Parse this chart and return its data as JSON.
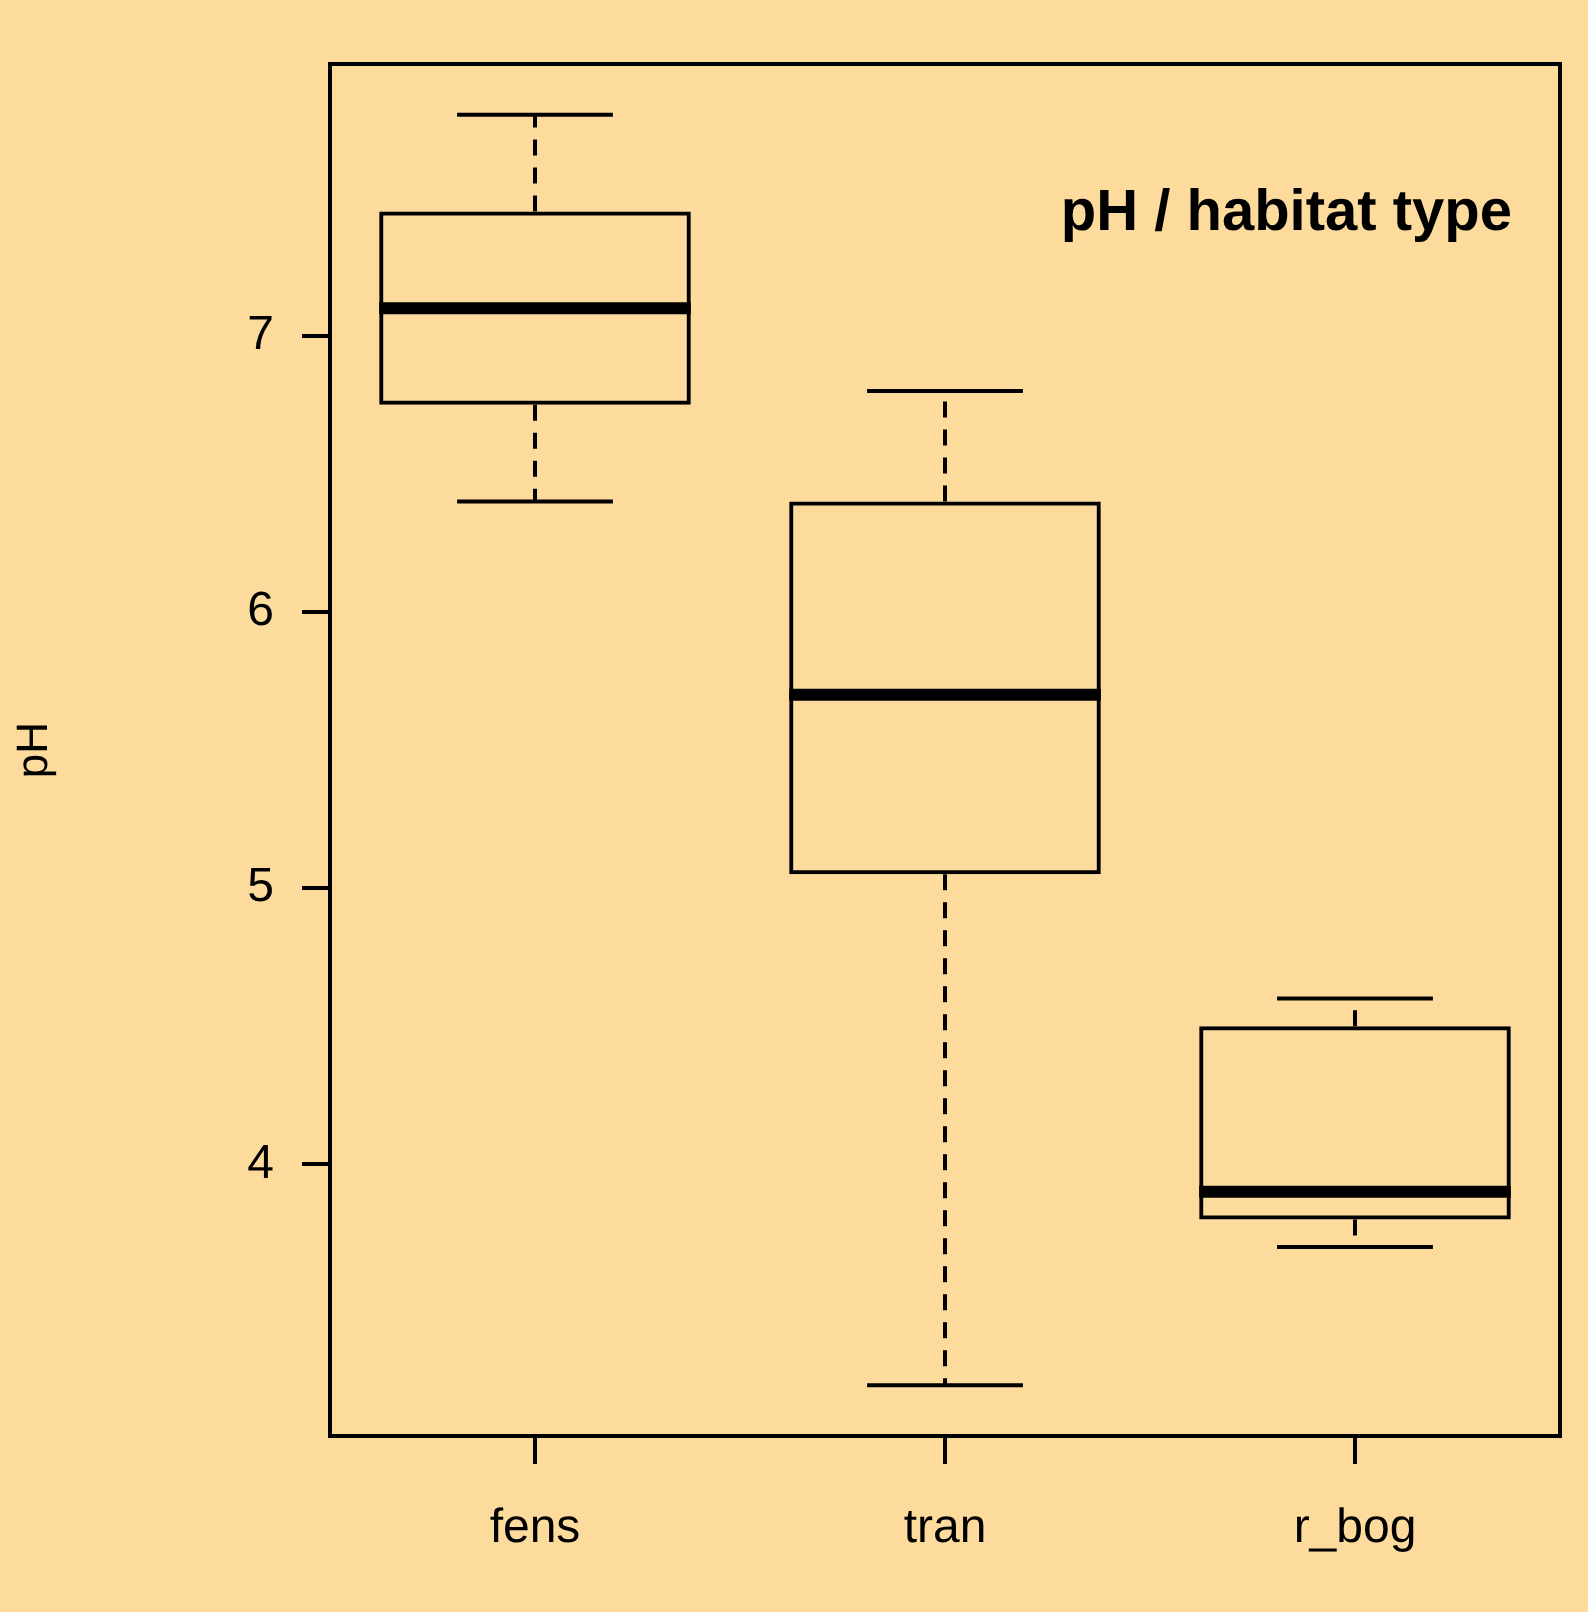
{
  "chart_data": {
    "type": "box",
    "title": "pH / habitat type",
    "ylabel": "pH",
    "categories": [
      "fens",
      "tran",
      "r_bog"
    ],
    "boxes": [
      {
        "low": 6.4,
        "q1": 6.75,
        "median": 7.1,
        "q3": 7.45,
        "high": 7.8
      },
      {
        "low": 3.2,
        "q1": 5.05,
        "median": 5.7,
        "q3": 6.4,
        "high": 6.8
      },
      {
        "low": 3.7,
        "q1": 3.8,
        "median": 3.9,
        "q3": 4.5,
        "high": 4.6
      }
    ],
    "ylim": [
      3.016,
      7.984
    ],
    "yticks": [
      4,
      5,
      6,
      7
    ]
  }
}
